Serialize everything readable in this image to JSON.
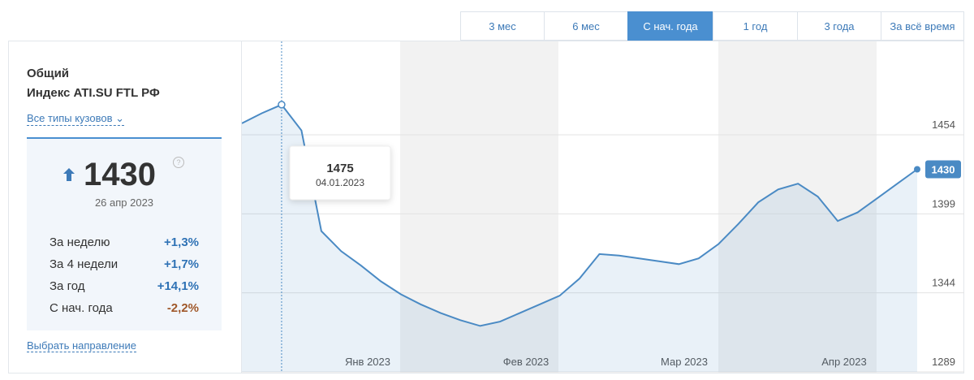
{
  "tabs": [
    "3 мес",
    "6 мес",
    "С нач. года",
    "1 год",
    "3 года",
    "За всё время"
  ],
  "active_tab": 2,
  "sidebar": {
    "title": "Общий",
    "subtitle": "Индекс ATI.SU FTL РФ",
    "filter": "Все типы кузовов",
    "value": 1430,
    "date": "26 апр 2023",
    "stats": [
      [
        "За неделю",
        "+1,3%"
      ],
      [
        "За 4 недели",
        "+1,7%"
      ],
      [
        "За год",
        "+14,1%"
      ],
      [
        "С нач. года",
        "-2,2%"
      ]
    ],
    "link": "Выбрать направление"
  },
  "chart_data": {
    "type": "line",
    "color": "#4a8ac4",
    "values": [
      1462,
      1469,
      1475,
      1457,
      1387,
      1373,
      1363,
      1352,
      1343,
      1336,
      1330,
      1325,
      1321,
      1324,
      1330,
      1336,
      1342,
      1354,
      1371,
      1370,
      1368,
      1366,
      1364,
      1368,
      1378,
      1392,
      1407,
      1416,
      1420,
      1411,
      1394,
      1400,
      1410,
      1420,
      1430
    ],
    "ylim": [
      1289,
      1519
    ],
    "yticks": [
      1289,
      1344,
      1399,
      1454
    ],
    "grid": true,
    "months": [
      "Янв 2023",
      "Фев 2023",
      "Мар 2023",
      "Апр 2023"
    ],
    "tooltip_date": "04.01.2023"
  }
}
